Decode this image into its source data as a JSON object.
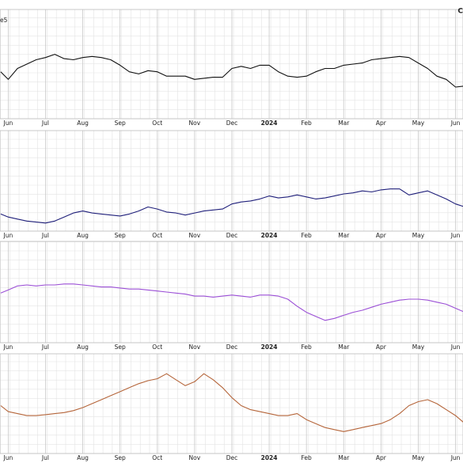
{
  "corner_label": "C",
  "chart_data": [
    {
      "type": "line",
      "annotation": "e5",
      "xlim": [
        -0.22,
        12.2
      ],
      "ylim": [
        0,
        100
      ],
      "xticks": [
        {
          "value": 0,
          "label": "Jun"
        },
        {
          "value": 1,
          "label": "Jul"
        },
        {
          "value": 2,
          "label": "Aug"
        },
        {
          "value": 3,
          "label": "Sep"
        },
        {
          "value": 4,
          "label": "Oct"
        },
        {
          "value": 5,
          "label": "Nov"
        },
        {
          "value": 6,
          "label": "Dec"
        },
        {
          "value": 7,
          "label": "2024"
        },
        {
          "value": 8,
          "label": "Feb"
        },
        {
          "value": 9,
          "label": "Mar"
        },
        {
          "value": 10,
          "label": "Apr"
        },
        {
          "value": 11,
          "label": "May"
        },
        {
          "value": 12,
          "label": "Jun"
        }
      ],
      "x": [
        -0.2,
        0,
        0.25,
        0.5,
        0.75,
        1,
        1.25,
        1.5,
        1.75,
        2,
        2.25,
        2.5,
        2.75,
        3,
        3.25,
        3.5,
        3.75,
        4,
        4.25,
        4.5,
        4.75,
        5,
        5.25,
        5.5,
        5.75,
        6,
        6.25,
        6.5,
        6.75,
        7,
        7.25,
        7.5,
        7.75,
        8,
        8.25,
        8.5,
        8.75,
        9,
        9.25,
        9.5,
        9.75,
        10,
        10.25,
        10.5,
        10.75,
        11,
        11.25,
        11.5,
        11.75,
        12,
        12.25
      ],
      "series": [
        {
          "color": "#111111",
          "values": [
            43,
            36,
            46,
            50,
            54,
            56,
            59,
            55,
            54,
            56,
            57,
            56,
            54,
            49,
            43,
            41,
            44,
            43,
            39,
            39,
            39,
            36,
            37,
            38,
            38,
            46,
            48,
            46,
            49,
            49,
            43,
            39,
            38,
            39,
            43,
            46,
            46,
            49,
            50,
            51,
            54,
            55,
            56,
            57,
            56,
            51,
            46,
            39,
            36,
            29,
            30
          ]
        }
      ]
    },
    {
      "type": "line",
      "xlim": [
        -0.22,
        12.2
      ],
      "ylim": [
        0,
        100
      ],
      "xticks": [
        {
          "value": 0,
          "label": "Jun"
        },
        {
          "value": 1,
          "label": "Jul"
        },
        {
          "value": 2,
          "label": "Aug"
        },
        {
          "value": 3,
          "label": "Sep"
        },
        {
          "value": 4,
          "label": "Oct"
        },
        {
          "value": 5,
          "label": "Nov"
        },
        {
          "value": 6,
          "label": "Dec"
        },
        {
          "value": 7,
          "label": "2024"
        },
        {
          "value": 8,
          "label": "Feb"
        },
        {
          "value": 9,
          "label": "Mar"
        },
        {
          "value": 10,
          "label": "Apr"
        },
        {
          "value": 11,
          "label": "May"
        },
        {
          "value": 12,
          "label": "Jun"
        }
      ],
      "x": [
        -0.2,
        0,
        0.25,
        0.5,
        0.75,
        1,
        1.25,
        1.5,
        1.75,
        2,
        2.25,
        2.5,
        2.75,
        3,
        3.25,
        3.5,
        3.75,
        4,
        4.25,
        4.5,
        4.75,
        5,
        5.25,
        5.5,
        5.75,
        6,
        6.25,
        6.5,
        6.75,
        7,
        7.25,
        7.5,
        7.75,
        8,
        8.25,
        8.5,
        8.75,
        9,
        9.25,
        9.5,
        9.75,
        10,
        10.25,
        10.5,
        10.75,
        11,
        11.25,
        11.5,
        11.75,
        12,
        12.25
      ],
      "series": [
        {
          "color": "#1f1f7a",
          "values": [
            17,
            14,
            12,
            10,
            9,
            8,
            10,
            14,
            18,
            20,
            18,
            17,
            16,
            15,
            17,
            20,
            24,
            22,
            19,
            18,
            16,
            18,
            20,
            21,
            22,
            27,
            29,
            30,
            32,
            35,
            33,
            34,
            36,
            34,
            32,
            33,
            35,
            37,
            38,
            40,
            39,
            41,
            42,
            42,
            36,
            38,
            40,
            36,
            32,
            27,
            24
          ]
        }
      ]
    },
    {
      "type": "line",
      "xlim": [
        -0.22,
        12.2
      ],
      "ylim": [
        0,
        100
      ],
      "xticks": [
        {
          "value": 0,
          "label": "Jun"
        },
        {
          "value": 1,
          "label": "Jul"
        },
        {
          "value": 2,
          "label": "Aug"
        },
        {
          "value": 3,
          "label": "Sep"
        },
        {
          "value": 4,
          "label": "Oct"
        },
        {
          "value": 5,
          "label": "Nov"
        },
        {
          "value": 6,
          "label": "Dec"
        },
        {
          "value": 7,
          "label": "2024"
        },
        {
          "value": 8,
          "label": "Feb"
        },
        {
          "value": 9,
          "label": "Mar"
        },
        {
          "value": 10,
          "label": "Apr"
        },
        {
          "value": 11,
          "label": "May"
        },
        {
          "value": 12,
          "label": "Jun"
        }
      ],
      "x": [
        -0.2,
        0,
        0.25,
        0.5,
        0.75,
        1,
        1.25,
        1.5,
        1.75,
        2,
        2.25,
        2.5,
        2.75,
        3,
        3.25,
        3.5,
        3.75,
        4,
        4.25,
        4.5,
        4.75,
        5,
        5.25,
        5.5,
        5.75,
        6,
        6.25,
        6.5,
        6.75,
        7,
        7.25,
        7.5,
        7.75,
        8,
        8.25,
        8.5,
        8.75,
        9,
        9.25,
        9.5,
        9.75,
        10,
        10.25,
        10.5,
        10.75,
        11,
        11.25,
        11.5,
        11.75,
        12,
        12.25
      ],
      "series": [
        {
          "color": "#9b4fd6",
          "values": [
            49,
            52,
            56,
            57,
            56,
            57,
            57,
            58,
            58,
            57,
            56,
            55,
            55,
            54,
            53,
            53,
            52,
            51,
            50,
            49,
            48,
            46,
            46,
            45,
            46,
            47,
            46,
            45,
            47,
            47,
            46,
            43,
            36,
            30,
            26,
            22,
            24,
            27,
            30,
            32,
            35,
            38,
            40,
            42,
            43,
            43,
            42,
            40,
            38,
            34,
            30
          ]
        }
      ]
    },
    {
      "type": "line",
      "xlim": [
        -0.22,
        12.2
      ],
      "ylim": [
        0,
        100
      ],
      "xticks": [
        {
          "value": 0,
          "label": "Jun"
        },
        {
          "value": 1,
          "label": "Jul"
        },
        {
          "value": 2,
          "label": "Aug"
        },
        {
          "value": 3,
          "label": "Sep"
        },
        {
          "value": 4,
          "label": "Oct"
        },
        {
          "value": 5,
          "label": "Nov"
        },
        {
          "value": 6,
          "label": "Dec"
        },
        {
          "value": 7,
          "label": "2024"
        },
        {
          "value": 8,
          "label": "Feb"
        },
        {
          "value": 9,
          "label": "Mar"
        },
        {
          "value": 10,
          "label": "Apr"
        },
        {
          "value": 11,
          "label": "May"
        },
        {
          "value": 12,
          "label": "Jun"
        }
      ],
      "x": [
        -0.2,
        0,
        0.25,
        0.5,
        0.75,
        1,
        1.25,
        1.5,
        1.75,
        2,
        2.25,
        2.5,
        2.75,
        3,
        3.25,
        3.5,
        3.75,
        4,
        4.25,
        4.5,
        4.75,
        5,
        5.25,
        5.5,
        5.75,
        6,
        6.25,
        6.5,
        6.75,
        7,
        7.25,
        7.5,
        7.75,
        8,
        8.25,
        8.5,
        8.75,
        9,
        9.25,
        9.5,
        9.75,
        10,
        10.25,
        10.5,
        10.75,
        11,
        11.25,
        11.5,
        11.75,
        12,
        12.25
      ],
      "series": [
        {
          "color": "#b5653a",
          "values": [
            48,
            42,
            40,
            38,
            38,
            39,
            40,
            41,
            43,
            46,
            50,
            54,
            58,
            62,
            66,
            70,
            73,
            75,
            80,
            74,
            68,
            72,
            80,
            74,
            66,
            56,
            48,
            44,
            42,
            40,
            38,
            38,
            40,
            34,
            30,
            26,
            24,
            22,
            24,
            26,
            28,
            30,
            34,
            40,
            48,
            52,
            54,
            50,
            44,
            38,
            30
          ]
        }
      ]
    }
  ]
}
